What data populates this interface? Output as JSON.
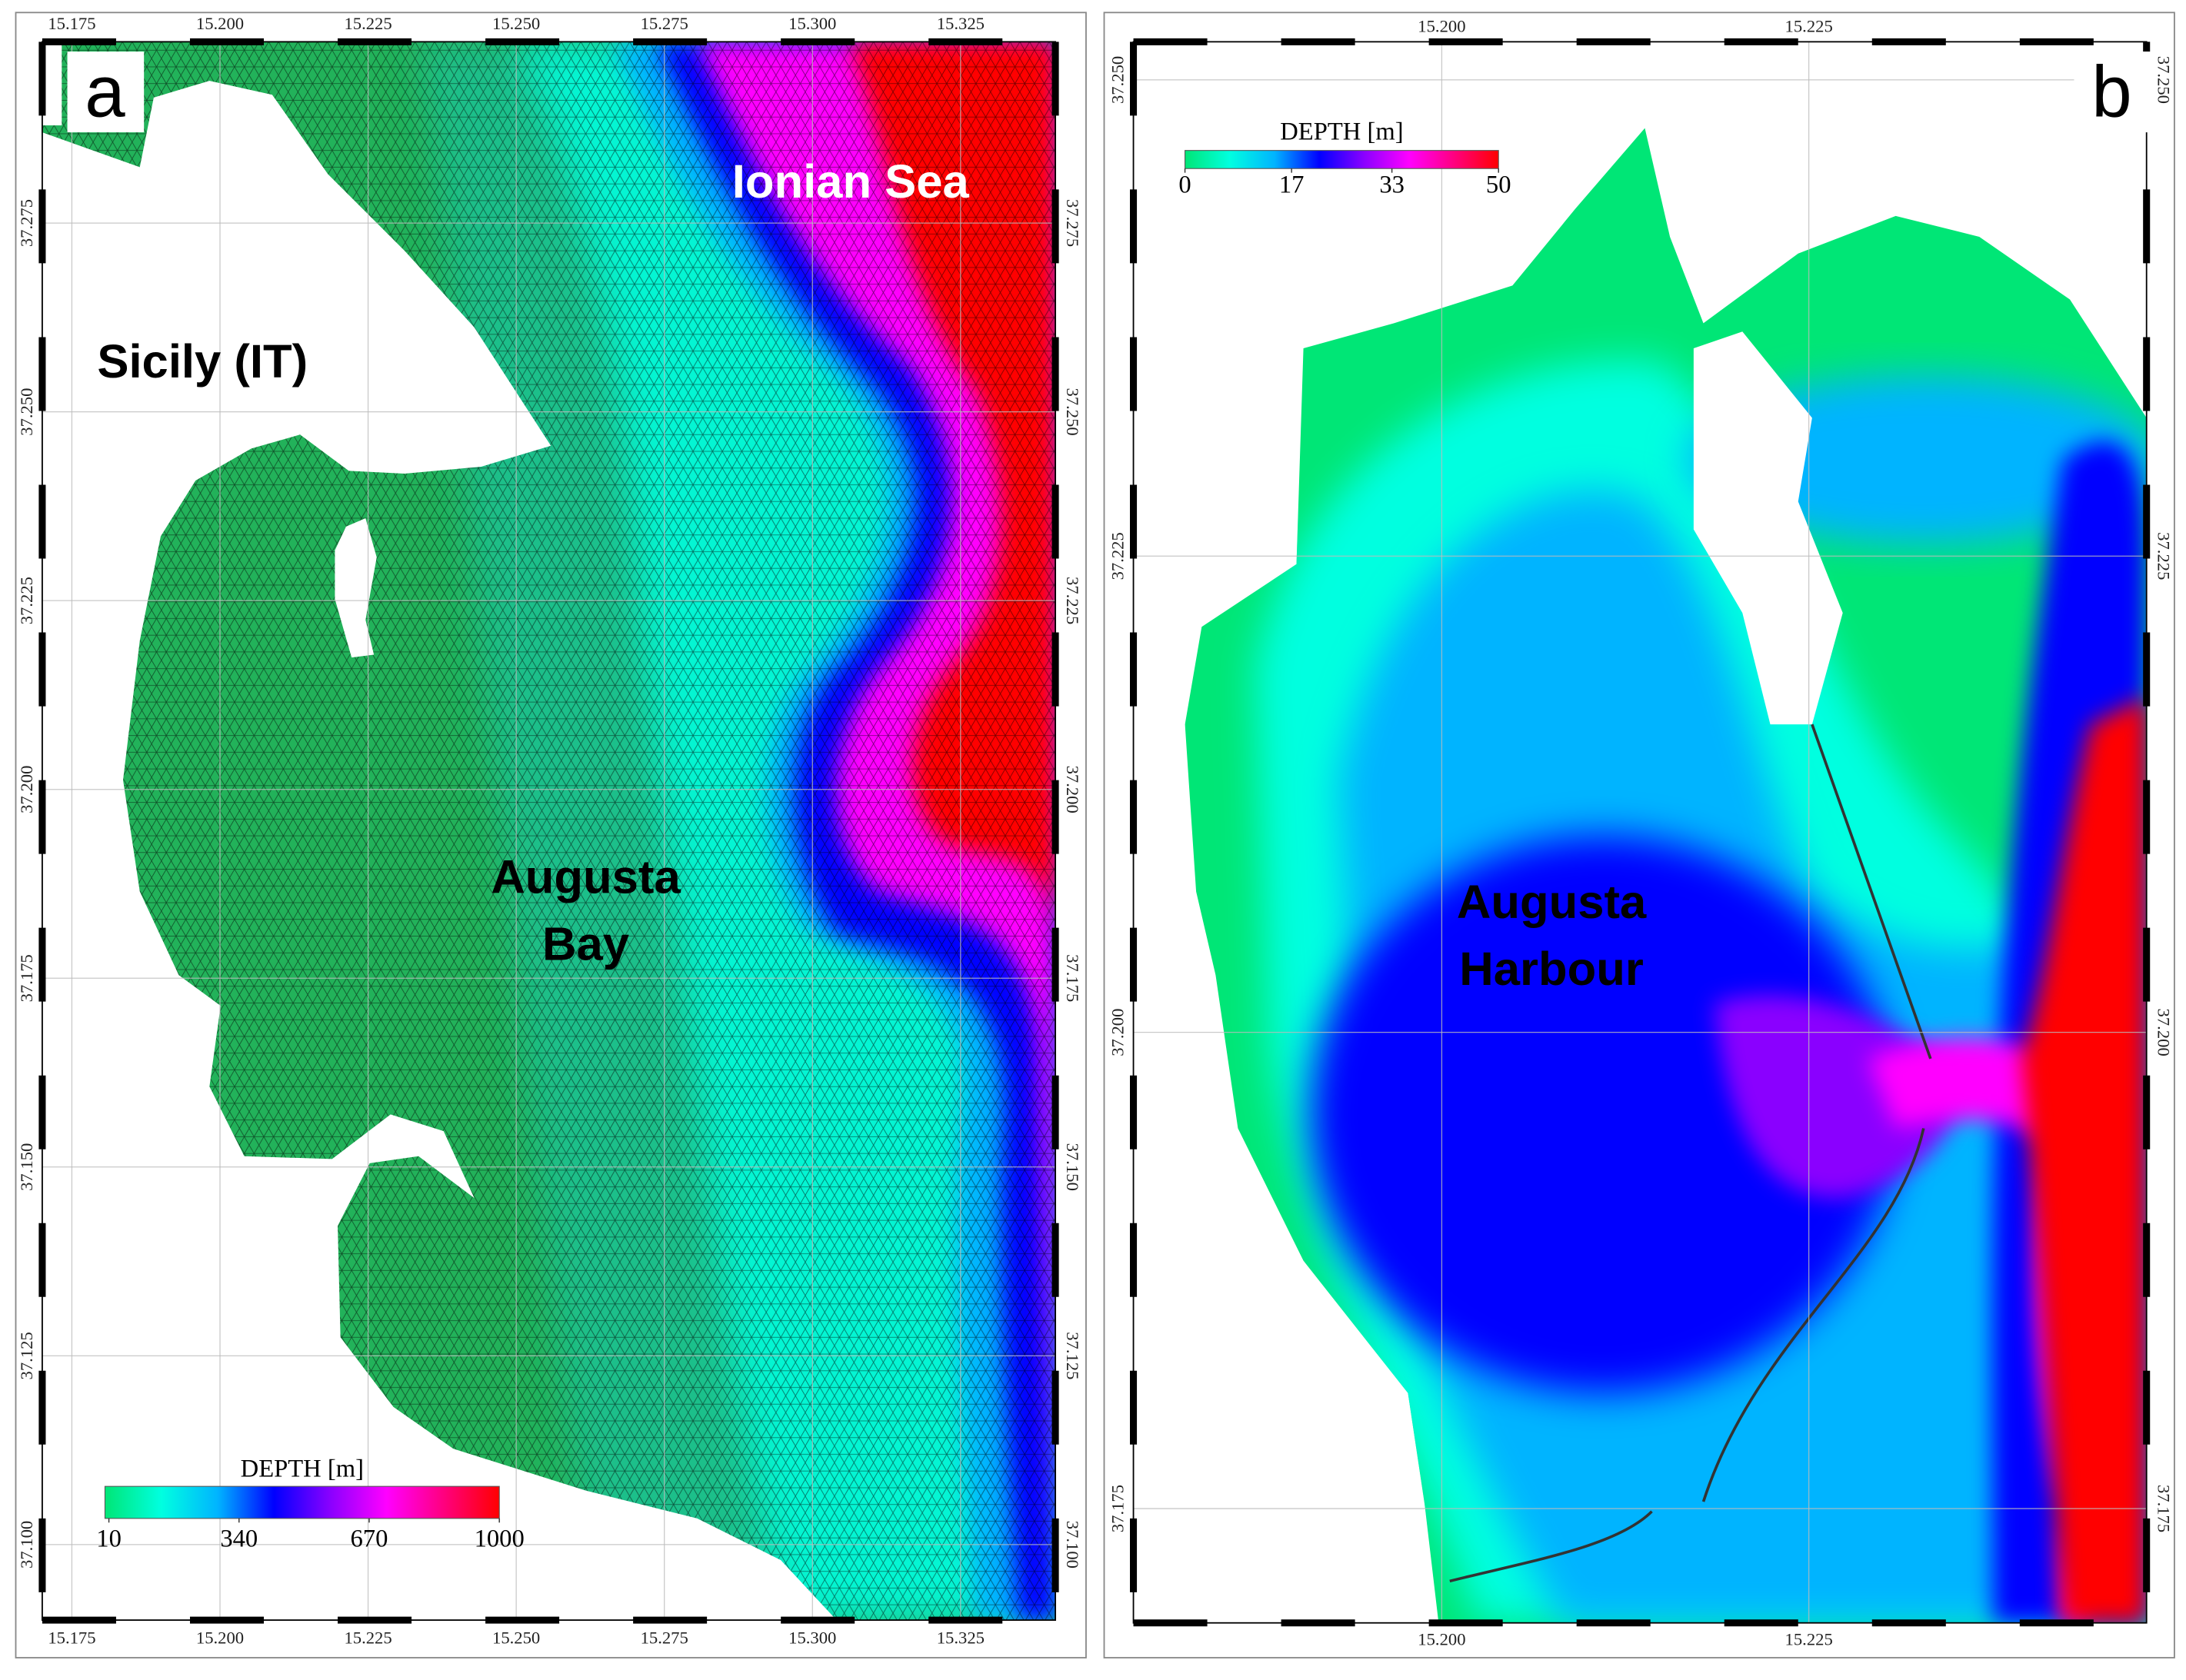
{
  "panels": [
    {
      "label": "a",
      "xlim": [
        15.17,
        15.341
      ],
      "ylim": [
        37.09,
        37.299
      ],
      "xticks": [
        15.175,
        {
          "value": 15.2,
          "label": "15.200"
        },
        15.225,
        {
          "value": 15.25,
          "label": "15.250"
        },
        15.275,
        {
          "value": 15.3,
          "label": "15.300"
        },
        15.325
      ],
      "yticks": [
        {
          "value": 37.1,
          "label": "37.100"
        },
        37.125,
        {
          "value": 37.15,
          "label": "37.150"
        },
        37.175,
        {
          "value": 37.2,
          "label": "37.200"
        },
        37.225,
        {
          "value": 37.25,
          "label": "37.250"
        },
        37.275
      ],
      "places": [
        [
          "Ionian Sea"
        ],
        [
          "Sicily (IT)"
        ],
        [
          "Augusta",
          "Bay"
        ]
      ],
      "colorbar": {
        "title": "DEPTH [m]",
        "lim": [
          0,
          1000
        ],
        "ticks": [
          10,
          340,
          670,
          1000
        ],
        "colors": [
          "#00e676",
          "#00ffe0",
          "#00b4ff",
          "#0000ff",
          "#8a00ff",
          "#ff00ff",
          "#ff0080",
          "#ff0000"
        ]
      }
    },
    {
      "label": "b",
      "xlim": [
        15.179,
        15.248
      ],
      "ylim": [
        37.169,
        37.252
      ],
      "xticks": [
        {
          "value": 15.2,
          "label": "15.200"
        },
        15.225
      ],
      "yticks": [
        37.175,
        {
          "value": 37.2,
          "label": "37.200"
        },
        37.225,
        {
          "value": 37.25,
          "label": "37.250"
        }
      ],
      "places": [
        [
          "Augusta",
          "Harbour"
        ]
      ],
      "colorbar": {
        "title": "DEPTH [m]",
        "lim": [
          0,
          50
        ],
        "ticks": [
          0,
          17,
          33,
          50
        ],
        "colors": [
          "#00e676",
          "#00ffe0",
          "#00b4ff",
          "#0000ff",
          "#8a00ff",
          "#ff00ff",
          "#ff0080",
          "#ff0000"
        ]
      }
    }
  ]
}
